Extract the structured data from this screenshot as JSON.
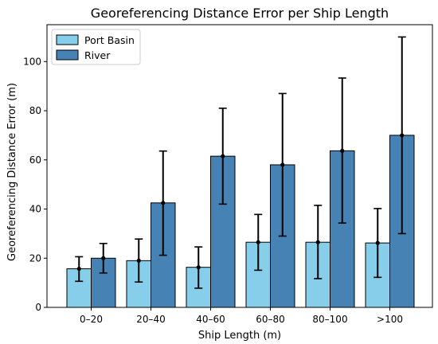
{
  "chart_data": {
    "type": "bar",
    "title": "Georeferencing Distance Error per Ship Length",
    "xlabel": "Ship Length (m)",
    "ylabel": "Georeferencing Distance Error (m)",
    "categories": [
      "0–20",
      "20–40",
      "40–60",
      "60–80",
      "80–100",
      ">100"
    ],
    "ylim": [
      0,
      115
    ],
    "yticks": [
      0,
      20,
      40,
      60,
      80,
      100
    ],
    "grid": false,
    "legend_position": "top-left",
    "series": [
      {
        "name": "Port Basin",
        "color": "#87ceeb",
        "values": [
          15.7,
          19.0,
          16.3,
          26.5,
          26.5,
          26.2
        ],
        "error_low": [
          10.6,
          10.3,
          7.8,
          15.1,
          11.7,
          12.2
        ],
        "error_high": [
          20.6,
          27.8,
          24.6,
          37.8,
          41.5,
          40.2
        ]
      },
      {
        "name": "River",
        "color": "#4682b4",
        "values": [
          20.0,
          42.5,
          61.5,
          58.0,
          63.7,
          70.0
        ],
        "error_low": [
          14.0,
          21.2,
          42.0,
          29.0,
          34.3,
          30.0
        ],
        "error_high": [
          26.0,
          63.6,
          81.0,
          87.0,
          93.3,
          110.0
        ]
      }
    ]
  }
}
